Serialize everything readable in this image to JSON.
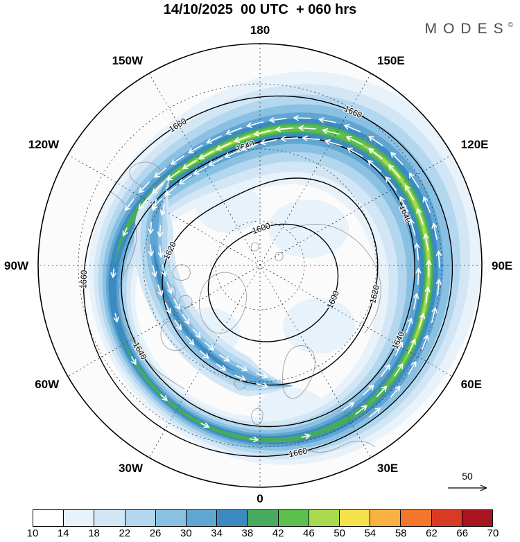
{
  "header": {
    "title": "14/10/2025  00 UTC  + 060 hrs",
    "logo": "MODES",
    "logo_mark": "©"
  },
  "reference_vector": {
    "label": "50"
  },
  "chart_data": {
    "type": "heatmap",
    "title": "14/10/2025 00 UTC + 060 hrs",
    "description": "Northern Hemisphere polar stereographic forecast map: wind speed shaded with jet-stream band, geopotential height contours, white wind vectors",
    "projection": "north_polar_stereographic",
    "contour_levels": [
      1600,
      1620,
      1640,
      1660
    ],
    "contour_interval": 20,
    "longitude_labels": [
      {
        "label": "0",
        "lon": 0
      },
      {
        "label": "30E",
        "lon": 30
      },
      {
        "label": "60E",
        "lon": 60
      },
      {
        "label": "90E",
        "lon": 90
      },
      {
        "label": "120E",
        "lon": 120
      },
      {
        "label": "150E",
        "lon": 150
      },
      {
        "label": "180",
        "lon": 180
      },
      {
        "label": "150W",
        "lon": -150
      },
      {
        "label": "120W",
        "lon": -120
      },
      {
        "label": "90W",
        "lon": -90
      },
      {
        "label": "60W",
        "lon": -60
      },
      {
        "label": "30W",
        "lon": -30
      }
    ],
    "colorbar": {
      "ticks": [
        10,
        14,
        18,
        22,
        26,
        30,
        34,
        38,
        42,
        46,
        50,
        54,
        58,
        62,
        66,
        70
      ],
      "colors": [
        "#ffffff",
        "#e8f2fa",
        "#d2e6f5",
        "#b2d7ee",
        "#8ac0e2",
        "#5fa6d4",
        "#3b8bc2",
        "#46ab5d",
        "#5dbf4e",
        "#a8d94e",
        "#f5e14b",
        "#f9b141",
        "#f2762b",
        "#d93a22",
        "#a81420"
      ]
    },
    "wind_arrow_color": "#ffffff",
    "reference_vector_value": 50
  }
}
